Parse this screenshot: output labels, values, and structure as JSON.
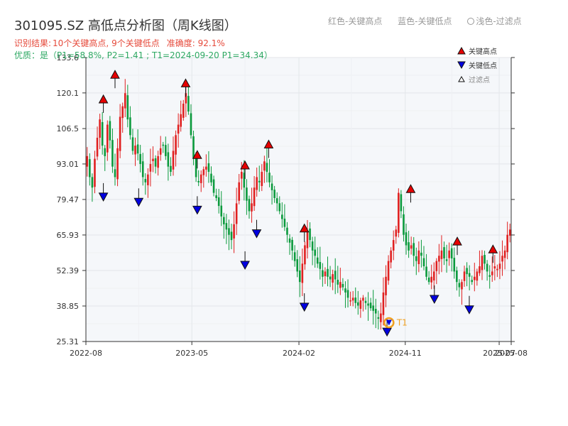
{
  "header": {
    "title": "301095.SZ 高低点分析图（周K线图）",
    "legend_high": "红色-关键高点",
    "legend_low": "蓝色-关键低点",
    "legend_filtered": "浅色-过滤点",
    "result_prefix": "识别结果:",
    "result_highs": "10个关键高点,",
    "result_lows": "9个关键低点",
    "accuracy": "准确度: 92.1%",
    "quality": "优质：是（P1=58.8%, P2=1.41 ; T1=2024-09-20 P1=34.34）"
  },
  "chart_data": {
    "type": "candlestick",
    "title": "301095.SZ 高低点分析图（周K线图）",
    "ylim": [
      25.31,
      133.6
    ],
    "yticks": [
      "25.31",
      "38.85",
      "52.39",
      "65.93",
      "79.47",
      "93.01",
      "106.5",
      "120.1",
      "133.6"
    ],
    "xticks": [
      "2022-08",
      "2023-05",
      "2024-02",
      "2024-11",
      "2025-07",
      "2025-08"
    ],
    "colors": {
      "up": "#e02020",
      "down": "#0a9a3c",
      "high": "#e60000",
      "low": "#0000e0",
      "t1": "#f0a020"
    },
    "legend": [
      "关键高点",
      "关键低点",
      "过滤点"
    ],
    "t1_label": "T1",
    "weekly_closes": [
      96,
      88,
      84,
      95,
      103,
      110,
      100,
      96,
      108,
      102,
      92,
      88,
      99,
      111,
      115,
      120,
      110,
      104,
      98,
      100,
      97,
      93,
      88,
      86,
      89,
      93,
      95,
      92,
      96,
      99,
      100,
      96,
      92,
      90,
      98,
      104,
      108,
      112,
      116,
      120,
      113,
      104,
      95,
      88,
      86,
      89,
      91,
      92,
      90,
      86,
      82,
      80,
      77,
      73,
      70,
      68,
      66,
      64,
      70,
      78,
      86,
      90,
      84,
      79,
      75,
      78,
      84,
      88,
      86,
      90,
      94,
      90,
      86,
      83,
      80,
      78,
      75,
      72,
      69,
      66,
      63,
      60,
      56,
      52,
      48,
      55,
      62,
      67,
      64,
      60,
      58,
      55,
      53,
      50,
      52,
      50,
      49,
      51,
      49,
      47,
      48,
      46,
      44,
      42,
      41,
      42,
      40,
      39,
      41,
      42,
      40,
      39,
      38,
      37,
      36,
      34,
      36,
      44,
      50,
      56,
      60,
      64,
      68,
      82,
      75,
      66,
      62,
      60,
      62,
      58,
      56,
      60,
      58,
      54,
      50,
      48,
      50,
      52,
      56,
      58,
      60,
      57,
      56,
      60,
      57,
      52,
      48,
      46,
      48,
      52,
      51,
      50,
      48,
      50,
      52,
      54,
      58,
      55,
      52,
      50,
      52,
      54,
      53,
      55,
      58,
      60,
      66,
      68
    ],
    "key_highs": [
      {
        "date": "2022-09",
        "value": 115.2
      },
      {
        "date": "2022-10",
        "value": 124.6
      },
      {
        "date": "2023-04",
        "value": 121.3
      },
      {
        "date": "2023-05",
        "value": 94.0
      },
      {
        "date": "2023-09",
        "value": 90.0
      },
      {
        "date": "2023-11",
        "value": 98.0
      },
      {
        "date": "2024-02",
        "value": 66.0
      },
      {
        "date": "2024-11",
        "value": 81.0
      },
      {
        "date": "2025-03",
        "value": 61.0
      },
      {
        "date": "2025-06",
        "value": 58.0
      }
    ],
    "key_lows": [
      {
        "date": "2022-09",
        "value": 83.0
      },
      {
        "date": "2022-12",
        "value": 81.0
      },
      {
        "date": "2023-05",
        "value": 78.0
      },
      {
        "date": "2023-09",
        "value": 57.0
      },
      {
        "date": "2023-10",
        "value": 69.0
      },
      {
        "date": "2024-02",
        "value": 41.0
      },
      {
        "date": "2024-09",
        "value": 31.5
      },
      {
        "date": "2025-01",
        "value": 44.0
      },
      {
        "date": "2025-04",
        "value": 40.0
      }
    ]
  }
}
